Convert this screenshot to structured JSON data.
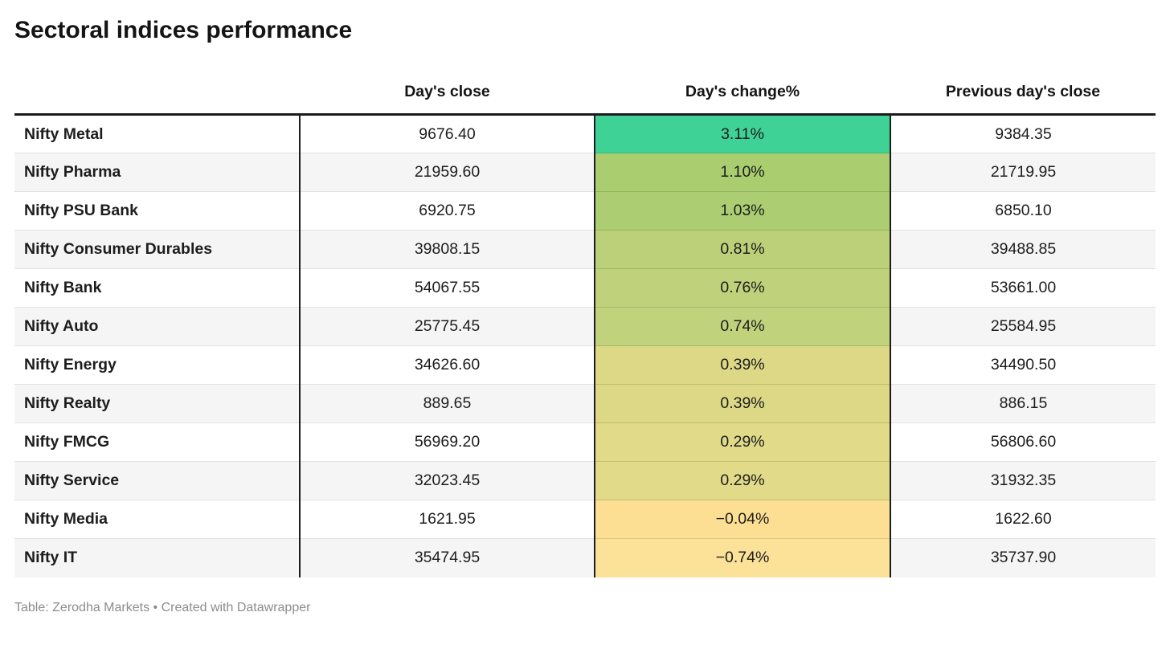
{
  "chart_data": {
    "type": "table",
    "title": "Sectoral indices performance",
    "columns": [
      "",
      "Day's close",
      "Day's change%",
      "Previous day's close"
    ],
    "legend_position": "none",
    "heatmap_column": "Day's change%",
    "rows": [
      {
        "label": "Nifty Metal",
        "close": "9676.40",
        "change": "3.11%",
        "change_value": 3.11,
        "prev": "9384.35",
        "color": "#3fd296"
      },
      {
        "label": "Nifty Pharma",
        "close": "21959.60",
        "change": "1.10%",
        "change_value": 1.1,
        "prev": "21719.95",
        "color": "#a9cd6f"
      },
      {
        "label": "Nifty PSU Bank",
        "close": "6920.75",
        "change": "1.03%",
        "change_value": 1.03,
        "prev": "6850.10",
        "color": "#accd72"
      },
      {
        "label": "Nifty Consumer Durables",
        "close": "39808.15",
        "change": "0.81%",
        "change_value": 0.81,
        "prev": "39488.85",
        "color": "#bbd079"
      },
      {
        "label": "Nifty Bank",
        "close": "54067.55",
        "change": "0.76%",
        "change_value": 0.76,
        "prev": "53661.00",
        "color": "#c0d17c"
      },
      {
        "label": "Nifty Auto",
        "close": "25775.45",
        "change": "0.74%",
        "change_value": 0.74,
        "prev": "25584.95",
        "color": "#c1d27d"
      },
      {
        "label": "Nifty Energy",
        "close": "34626.60",
        "change": "0.39%",
        "change_value": 0.39,
        "prev": "34490.50",
        "color": "#dcd885"
      },
      {
        "label": "Nifty Realty",
        "close": "889.65",
        "change": "0.39%",
        "change_value": 0.39,
        "prev": "886.15",
        "color": "#dcd885"
      },
      {
        "label": "Nifty FMCG",
        "close": "56969.20",
        "change": "0.29%",
        "change_value": 0.29,
        "prev": "56806.60",
        "color": "#e1da88"
      },
      {
        "label": "Nifty Service",
        "close": "32023.45",
        "change": "0.29%",
        "change_value": 0.29,
        "prev": "31932.35",
        "color": "#e1da88"
      },
      {
        "label": "Nifty Media",
        "close": "1621.95",
        "change": "−0.04%",
        "change_value": -0.04,
        "prev": "1622.60",
        "color": "#fcdf92"
      },
      {
        "label": "Nifty IT",
        "close": "35474.95",
        "change": "−0.74%",
        "change_value": -0.74,
        "prev": "35737.90",
        "color": "#fbe298"
      }
    ]
  },
  "footer": {
    "text": "Table: Zerodha Markets • Created with Datawrapper"
  },
  "colors": {
    "header_rule": "#1c1c1c",
    "column_divider": "#1d1d1d",
    "row_alt_background": "#f5f5f5",
    "row_separator": "#e2e2e2",
    "footer_text": "#8c8c8c",
    "positive_max": "#3fd296",
    "negative_min": "#fbe298"
  }
}
